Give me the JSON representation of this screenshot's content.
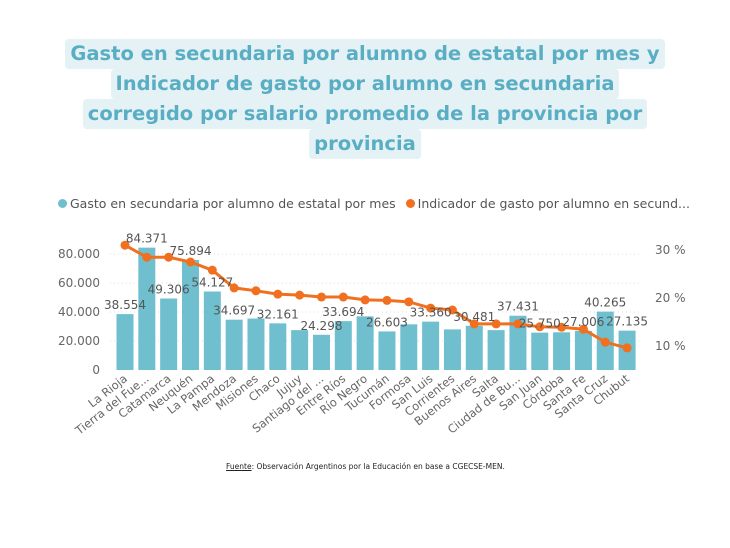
{
  "title_lines": [
    "Gasto en secundaria por alumno de estatal por mes y",
    "Indicador de gasto por alumno en secundaria",
    "corregido por salario promedio de la provincia por",
    "provincia"
  ],
  "source": {
    "label": "Fuente",
    "text": ": Observación Argentinos por la Educación en base a CGECSE-MEN."
  },
  "colors": {
    "bar": "#6fbfcf",
    "line": "#f07020",
    "title": "#5aaec4",
    "title_bg": "#e4f1f5"
  },
  "chart_data": {
    "type": "bar+line",
    "categories": [
      "La Rioja",
      "Tierra del Fue...",
      "Catamarca",
      "Neuquén",
      "La Pampa",
      "Mendoza",
      "Misiones",
      "Chaco",
      "Jujuy",
      "Santiago del ...",
      "Entre Ríos",
      "Río Negro",
      "Tucumán",
      "Formosa",
      "San Luis",
      "Corrientes",
      "Buenos Aires",
      "Salta",
      "Ciudad de Bu...",
      "San Juan",
      "Córdoba",
      "Santa Fe",
      "Santa Cruz",
      "Chubut"
    ],
    "series": [
      {
        "name": "Gasto en secundaria por alumno de estatal por mes",
        "type": "bar",
        "axis": "left",
        "values": [
          38554,
          84371,
          49306,
          75894,
          54127,
          34697,
          35500,
          32161,
          27500,
          24298,
          33694,
          37000,
          26603,
          31500,
          33360,
          28000,
          30481,
          27500,
          37431,
          25750,
          26000,
          27006,
          40265,
          27135
        ],
        "labels": [
          "38.554",
          "84.371",
          "49.306",
          "75.894",
          "54.127",
          "34.697",
          null,
          "32.161",
          null,
          "24.298",
          "33.694",
          null,
          "26.603",
          null,
          "33.360",
          null,
          "30.481",
          null,
          "37.431",
          "25.750",
          null,
          "27.006",
          "40.265",
          "27.135"
        ]
      },
      {
        "name": "Indicador de gasto por alumno en secund...",
        "type": "line",
        "axis": "right",
        "values": [
          31.0,
          28.5,
          28.5,
          27.5,
          25.8,
          22.1,
          21.5,
          20.8,
          20.6,
          20.2,
          20.2,
          19.6,
          19.5,
          19.2,
          17.9,
          17.5,
          14.6,
          14.6,
          14.6,
          14.0,
          13.9,
          13.5,
          10.8,
          9.6
        ]
      }
    ],
    "y_left": {
      "ticks": [
        0,
        20000,
        40000,
        60000,
        80000
      ],
      "tick_labels": [
        "0",
        "20.000",
        "40.000",
        "60.000",
        "80.000"
      ],
      "ylim": [
        0,
        86000
      ]
    },
    "y_right": {
      "ticks": [
        10,
        20,
        30
      ],
      "tick_labels": [
        "10 %",
        "20 %",
        "30 %"
      ]
    },
    "legend_position": "top-left",
    "grid": true
  }
}
